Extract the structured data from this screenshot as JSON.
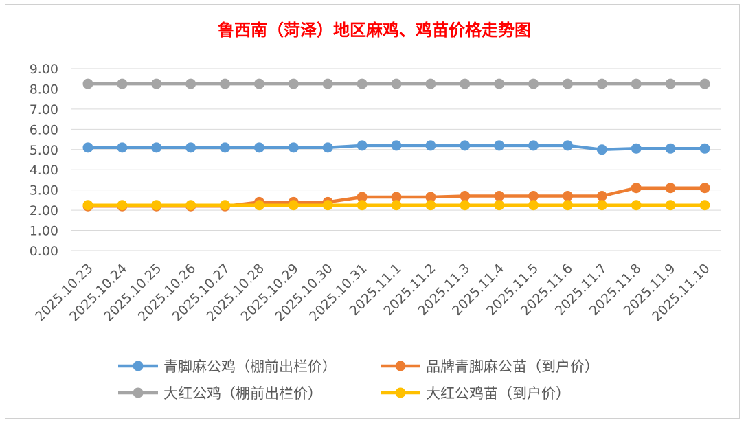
{
  "chart_data": {
    "type": "line",
    "title": "鲁西南（菏泽）地区麻鸡、鸡苗价格走势图",
    "xlabel": "",
    "ylabel": "",
    "ylim": [
      0,
      9
    ],
    "yticks": [
      "0.00",
      "1.00",
      "2.00",
      "3.00",
      "4.00",
      "5.00",
      "6.00",
      "7.00",
      "8.00",
      "9.00"
    ],
    "grid": true,
    "legend_position": "bottom",
    "x": [
      "2025.10.23",
      "2025.10.24",
      "2025.10.25",
      "2025.10.26",
      "2025.10.27",
      "2025.10.28",
      "2025.10.29",
      "2025.10.30",
      "2025.10.31",
      "2025.11.1",
      "2025.11.2",
      "2025.11.3",
      "2025.11.4",
      "2025.11.5",
      "2025.11.6",
      "2025.11.7",
      "2025.11.8",
      "2025.11.9",
      "2025.11.10"
    ],
    "series": [
      {
        "name": "青脚麻公鸡（棚前出栏价）",
        "color": "#5b9bd5",
        "values": [
          5.1,
          5.1,
          5.1,
          5.1,
          5.1,
          5.1,
          5.1,
          5.1,
          5.2,
          5.2,
          5.2,
          5.2,
          5.2,
          5.2,
          5.2,
          5.0,
          5.05,
          5.05,
          5.05
        ]
      },
      {
        "name": "品牌青脚麻公苗（到户价）",
        "color": "#ed7d31",
        "values": [
          2.2,
          2.2,
          2.2,
          2.2,
          2.2,
          2.4,
          2.4,
          2.4,
          2.65,
          2.65,
          2.65,
          2.7,
          2.7,
          2.7,
          2.7,
          2.7,
          3.1,
          3.1,
          3.1
        ]
      },
      {
        "name": "大红公鸡（棚前出栏价）",
        "color": "#a5a5a5",
        "values": [
          8.25,
          8.25,
          8.25,
          8.25,
          8.25,
          8.25,
          8.25,
          8.25,
          8.25,
          8.25,
          8.25,
          8.25,
          8.25,
          8.25,
          8.25,
          8.25,
          8.25,
          8.25,
          8.25
        ]
      },
      {
        "name": "大红公鸡苗（到户价）",
        "color": "#ffc000",
        "values": [
          2.25,
          2.25,
          2.25,
          2.25,
          2.25,
          2.25,
          2.25,
          2.25,
          2.25,
          2.25,
          2.25,
          2.25,
          2.25,
          2.25,
          2.25,
          2.25,
          2.25,
          2.25,
          2.25
        ]
      }
    ]
  }
}
